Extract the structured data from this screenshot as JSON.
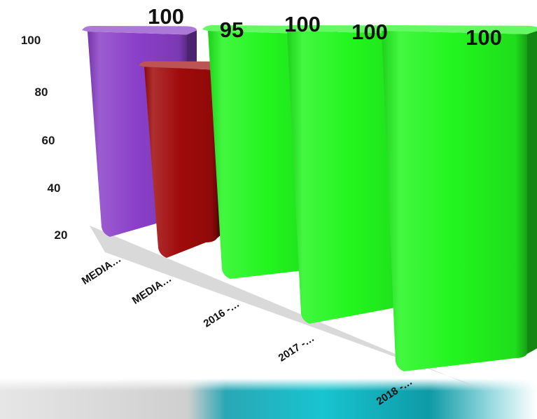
{
  "chart_data": {
    "type": "bar",
    "categories": [
      "MEDIA…",
      "MEDIA…",
      "2016 -…",
      "2017 -…",
      "2018 -…"
    ],
    "values": [
      100,
      95,
      100,
      100,
      100
    ],
    "data_labels": [
      "100",
      "95",
      "100",
      "100",
      "100"
    ],
    "y_ticks": [
      "100",
      "80",
      "60",
      "40",
      "20"
    ],
    "ylim": [
      20,
      100
    ],
    "title": "",
    "xlabel": "",
    "ylabel": "",
    "grid": false,
    "legend": "none",
    "colors": [
      "#8a3fc8",
      "#a00a0a",
      "#22f51e",
      "#22f51e",
      "#22f51e"
    ]
  }
}
